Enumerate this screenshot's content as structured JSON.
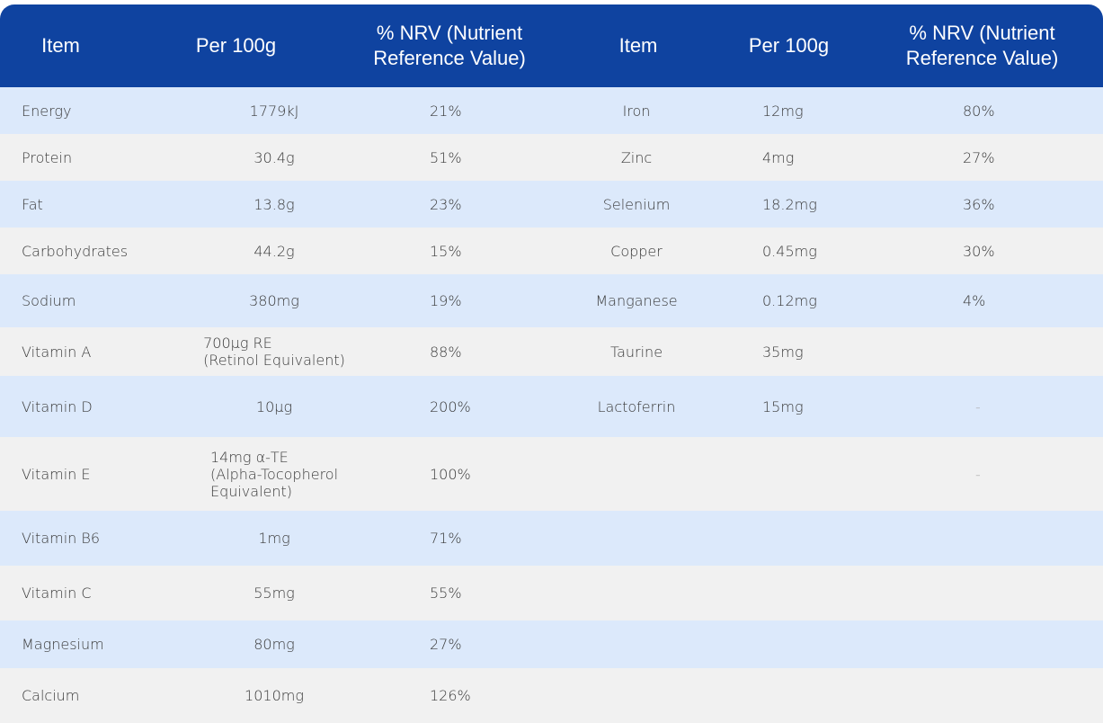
{
  "headers": [
    "Item",
    "Per 100g",
    "% NRV (Nutrient Reference Value)",
    "Item",
    "Per 100g",
    "% NRV (Nutrient Reference Value)"
  ],
  "colors": {
    "header": "#0f43a0",
    "row_blue": "#dce9fb",
    "row_gray": "#f1f1f1"
  },
  "rows": [
    {
      "item": "Energy",
      "per100g": "1779kJ",
      "nrv": "21%",
      "r_item": "Iron",
      "r_per100g": "12mg",
      "r_nrv": "80%"
    },
    {
      "item": "Protein",
      "per100g": "30.4g",
      "nrv": "51%",
      "r_item": "Zinc",
      "r_per100g": "4mg",
      "r_nrv": "27%"
    },
    {
      "item": "Fat",
      "per100g": "13.8g",
      "nrv": "23%",
      "r_item": "Selenium",
      "r_per100g": "18.2mg",
      "r_nrv": "36%"
    },
    {
      "item": "Carbohydrates",
      "per100g": "44.2g",
      "nrv": "15%",
      "r_item": "Copper",
      "r_per100g": "0.45mg",
      "r_nrv": "30%"
    },
    {
      "item": "Sodium",
      "per100g": "380mg",
      "nrv": "19%",
      "r_item": "Manganese",
      "r_per100g": "0.12mg",
      "r_nrv": "4%"
    },
    {
      "item": "Vitamin A",
      "per100g": "700µg RE\n(Retinol Equivalent)",
      "nrv": "88%",
      "r_item": "Taurine",
      "r_per100g": "35mg",
      "r_nrv": ""
    },
    {
      "item": "Vitamin D",
      "per100g": "10µg",
      "nrv": "200%",
      "r_item": "Lactoferrin",
      "r_per100g": "15mg",
      "r_nrv": "-"
    },
    {
      "item": "Vitamin E",
      "per100g": "14mg α-TE\n(Alpha-Tocopherol\nEquivalent)",
      "nrv": "100%",
      "r_item": "",
      "r_per100g": "",
      "r_nrv": "-"
    },
    {
      "item": "Vitamin B6",
      "per100g": "1mg",
      "nrv": "71%",
      "r_item": "",
      "r_per100g": "",
      "r_nrv": ""
    },
    {
      "item": "Vitamin C",
      "per100g": "55mg",
      "nrv": "55%",
      "r_item": "",
      "r_per100g": "",
      "r_nrv": ""
    },
    {
      "item": "Magnesium",
      "per100g": "80mg",
      "nrv": "27%",
      "r_item": "",
      "r_per100g": "",
      "r_nrv": ""
    },
    {
      "item": "Calcium",
      "per100g": "1010mg",
      "nrv": "126%",
      "r_item": "",
      "r_per100g": "",
      "r_nrv": ""
    }
  ]
}
